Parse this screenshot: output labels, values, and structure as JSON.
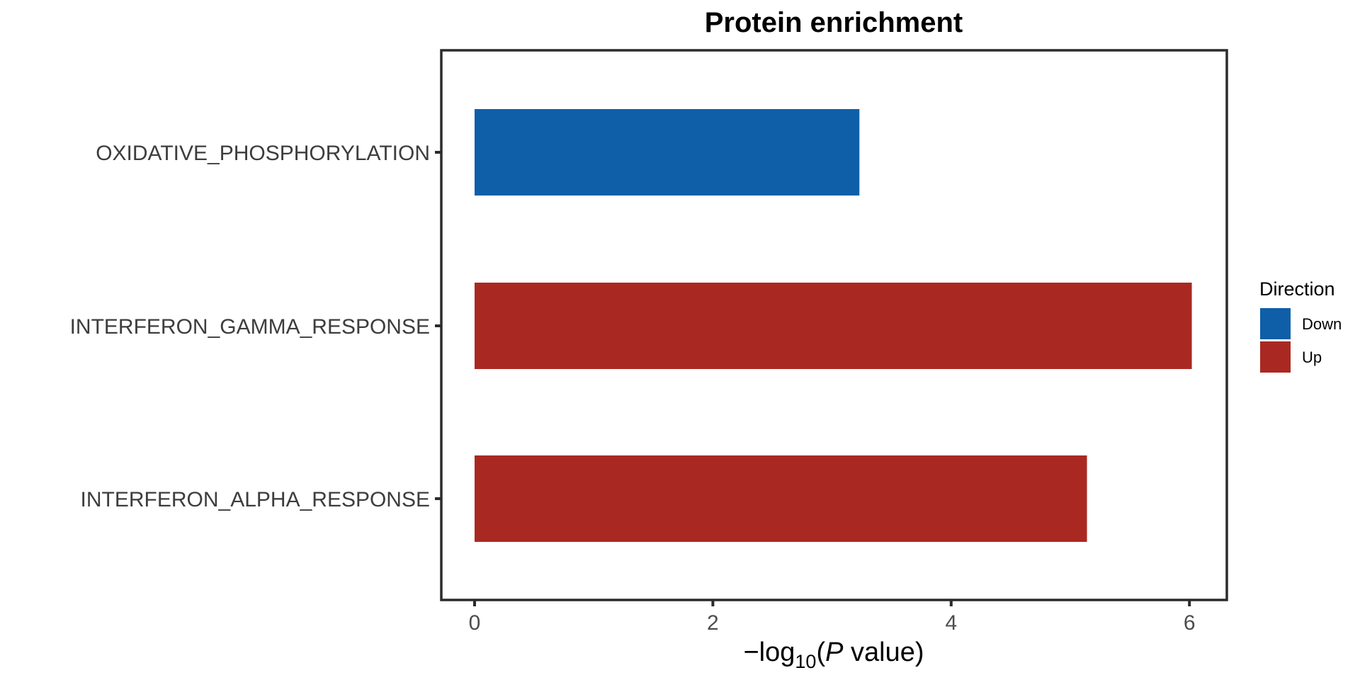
{
  "chart_data": {
    "type": "bar",
    "orientation": "horizontal",
    "title": "Protein enrichment",
    "xlabel": {
      "prefix": "−log",
      "subscript": "10",
      "open": "(",
      "italic": "P",
      "rest": " value)"
    },
    "ylabel": "",
    "xlim": [
      0,
      6.25
    ],
    "xticks": [
      0,
      2,
      4,
      6
    ],
    "categories": [
      "OXIDATIVE_PHOSPHORYLATION",
      "INTERFERON_GAMMA_RESPONSE",
      "INTERFERON_ALPHA_RESPONSE"
    ],
    "values": [
      3.23,
      6.02,
      5.14
    ],
    "direction": [
      "Down",
      "Up",
      "Up"
    ],
    "grid": false,
    "legend": {
      "title": "Direction",
      "placement": "right",
      "entries": [
        {
          "label": "Down",
          "color": "#0e5fa8"
        },
        {
          "label": "Up",
          "color": "#a92922"
        }
      ]
    }
  }
}
